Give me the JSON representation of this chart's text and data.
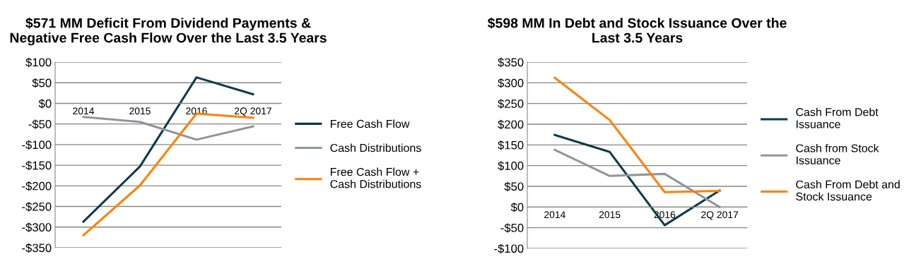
{
  "chart_data": [
    {
      "type": "line",
      "title": "$571 MM Deficit From Dividend Payments &\nNegative Free Cash Flow Over the Last 3.5 Years",
      "categories": [
        "2014",
        "2015",
        "2016",
        "2Q 2017"
      ],
      "series": [
        {
          "name": "Free Cash Flow",
          "color": "#0e3a4a",
          "values": [
            -287,
            -153,
            63,
            22
          ]
        },
        {
          "name": "Cash Distributions",
          "color": "#8c969e",
          "values": [
            -33,
            -45,
            -88,
            -56
          ]
        },
        {
          "name": "Free Cash Flow +\nCash Distributions",
          "color": "#ff8000",
          "values": [
            -320,
            -199,
            -25,
            -35
          ]
        }
      ],
      "ylim": [
        -350,
        100
      ],
      "yticks": [
        {
          "value": -350,
          "label": "-$350"
        },
        {
          "value": -300,
          "label": "-$300"
        },
        {
          "value": -250,
          "label": "-$250"
        },
        {
          "value": -200,
          "label": "-$200"
        },
        {
          "value": -150,
          "label": "-$150"
        },
        {
          "value": -100,
          "label": "-$100"
        },
        {
          "value": -50,
          "label": "-$50"
        },
        {
          "value": 0,
          "label": "$0"
        },
        {
          "value": 50,
          "label": "$50"
        },
        {
          "value": 100,
          "label": "$100"
        }
      ],
      "grid": "y",
      "legend": "right",
      "marker": "none",
      "line_style": "solid"
    },
    {
      "type": "line",
      "title": "$598 MM In Debt and Stock Issuance Over the\nLast 3.5 Years",
      "categories": [
        "2014",
        "2015",
        "2016",
        "2Q 2017"
      ],
      "series": [
        {
          "name": "Cash From Debt\nIssuance",
          "color": "#0e3a4a",
          "values": [
            174,
            133,
            -44,
            40
          ]
        },
        {
          "name": "Cash from Stock\nIssuance",
          "color": "#8c969e",
          "values": [
            138,
            75,
            80,
            0
          ]
        },
        {
          "name": "Cash From Debt and\nStock Issuance",
          "color": "#ff8000",
          "values": [
            312,
            210,
            36,
            39
          ]
        }
      ],
      "ylim": [
        -100,
        350
      ],
      "yticks": [
        {
          "value": -100,
          "label": "-$100"
        },
        {
          "value": -50,
          "label": "-$50"
        },
        {
          "value": 0,
          "label": "$0"
        },
        {
          "value": 50,
          "label": "$50"
        },
        {
          "value": 100,
          "label": "$100"
        },
        {
          "value": 150,
          "label": "$150"
        },
        {
          "value": 200,
          "label": "$200"
        },
        {
          "value": 250,
          "label": "$250"
        },
        {
          "value": 300,
          "label": "$300"
        },
        {
          "value": 350,
          "label": "$350"
        }
      ],
      "grid": "y",
      "legend": "right",
      "marker": "none",
      "line_style": "solid"
    }
  ]
}
